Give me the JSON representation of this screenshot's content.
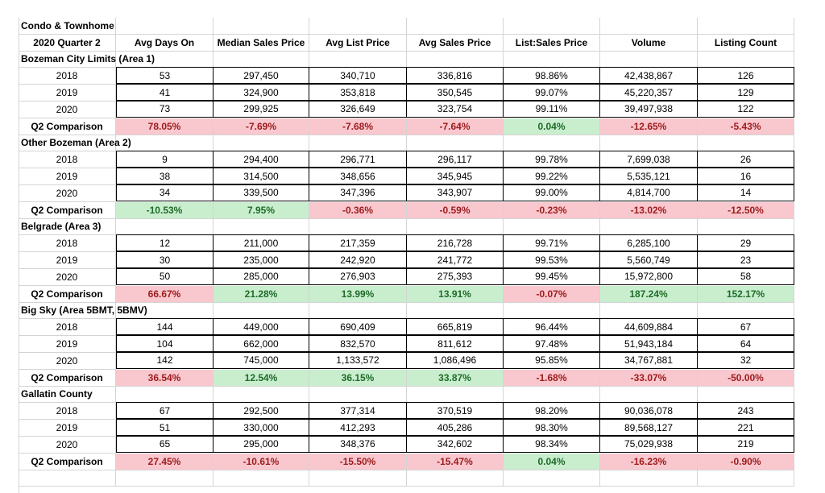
{
  "title_line1": "Condo & Townhome",
  "title_line2": "2020 Quarter 2",
  "columns": [
    "Avg Days On",
    "Median Sales Price",
    "Avg List Price",
    "Avg Sales Price",
    "List:Sales Price",
    "Volume",
    "Listing Count"
  ],
  "colors": {
    "pink_bg": "#f9c7ce",
    "pink_text": "#9c1c1c",
    "green_bg": "#c9eece",
    "green_text": "#1e6b28"
  },
  "sections": [
    {
      "name": "Bozeman City Limits (Area 1)",
      "rows": [
        {
          "year": "2018",
          "values": [
            "53",
            "297,450",
            "340,710",
            "336,816",
            "98.86%",
            "42,438,867",
            "126"
          ]
        },
        {
          "year": "2019",
          "values": [
            "41",
            "324,900",
            "353,818",
            "350,545",
            "99.07%",
            "45,220,357",
            "129"
          ]
        },
        {
          "year": "2020",
          "values": [
            "73",
            "299,925",
            "326,649",
            "323,754",
            "99.11%",
            "39,497,938",
            "122"
          ]
        }
      ],
      "comparison_label": "Q2 Comparison",
      "comparison": [
        {
          "value": "78.05%",
          "tone": "pos"
        },
        {
          "value": "-7.69%",
          "tone": "pos"
        },
        {
          "value": "-7.68%",
          "tone": "pos"
        },
        {
          "value": "-7.64%",
          "tone": "pos"
        },
        {
          "value": "0.04%",
          "tone": "neg"
        },
        {
          "value": "-12.65%",
          "tone": "pos"
        },
        {
          "value": "-5.43%",
          "tone": "pos"
        }
      ]
    },
    {
      "name": "Other Bozeman (Area 2)",
      "rows": [
        {
          "year": "2018",
          "values": [
            "9",
            "294,400",
            "296,771",
            "296,117",
            "99.78%",
            "7,699,038",
            "26"
          ]
        },
        {
          "year": "2019",
          "values": [
            "38",
            "314,500",
            "348,656",
            "345,945",
            "99.22%",
            "5,535,121",
            "16"
          ]
        },
        {
          "year": "2020",
          "values": [
            "34",
            "339,500",
            "347,396",
            "343,907",
            "99.00%",
            "4,814,700",
            "14"
          ]
        }
      ],
      "comparison_label": "Q2 Comparison",
      "comparison": [
        {
          "value": "-10.53%",
          "tone": "neg"
        },
        {
          "value": "7.95%",
          "tone": "neg"
        },
        {
          "value": "-0.36%",
          "tone": "pos"
        },
        {
          "value": "-0.59%",
          "tone": "pos"
        },
        {
          "value": "-0.23%",
          "tone": "pos"
        },
        {
          "value": "-13.02%",
          "tone": "pos"
        },
        {
          "value": "-12.50%",
          "tone": "pos"
        }
      ]
    },
    {
      "name": "Belgrade (Area 3)",
      "rows": [
        {
          "year": "2018",
          "values": [
            "12",
            "211,000",
            "217,359",
            "216,728",
            "99.71%",
            "6,285,100",
            "29"
          ]
        },
        {
          "year": "2019",
          "values": [
            "30",
            "235,000",
            "242,920",
            "241,772",
            "99.53%",
            "5,560,749",
            "23"
          ]
        },
        {
          "year": "2020",
          "values": [
            "50",
            "285,000",
            "276,903",
            "275,393",
            "99.45%",
            "15,972,800",
            "58"
          ]
        }
      ],
      "comparison_label": "Q2 Comparison",
      "comparison": [
        {
          "value": "66.67%",
          "tone": "pos"
        },
        {
          "value": "21.28%",
          "tone": "neg"
        },
        {
          "value": "13.99%",
          "tone": "neg"
        },
        {
          "value": "13.91%",
          "tone": "neg"
        },
        {
          "value": "-0.07%",
          "tone": "pos"
        },
        {
          "value": "187.24%",
          "tone": "neg"
        },
        {
          "value": "152.17%",
          "tone": "neg"
        }
      ]
    },
    {
      "name": "Big Sky (Area 5BMT, 5BMV)",
      "rows": [
        {
          "year": "2018",
          "values": [
            "144",
            "449,000",
            "690,409",
            "665,819",
            "96.44%",
            "44,609,884",
            "67"
          ]
        },
        {
          "year": "2019",
          "values": [
            "104",
            "662,000",
            "832,570",
            "811,612",
            "97.48%",
            "51,943,184",
            "64"
          ]
        },
        {
          "year": "2020",
          "values": [
            "142",
            "745,000",
            "1,133,572",
            "1,086,496",
            "95.85%",
            "34,767,881",
            "32"
          ]
        }
      ],
      "comparison_label": "Q2 Comparison",
      "comparison": [
        {
          "value": "36.54%",
          "tone": "pos"
        },
        {
          "value": "12.54%",
          "tone": "neg"
        },
        {
          "value": "36.15%",
          "tone": "neg"
        },
        {
          "value": "33.87%",
          "tone": "neg"
        },
        {
          "value": "-1.68%",
          "tone": "pos"
        },
        {
          "value": "-33.07%",
          "tone": "pos"
        },
        {
          "value": "-50.00%",
          "tone": "pos"
        }
      ]
    },
    {
      "name": "Gallatin County",
      "rows": [
        {
          "year": "2018",
          "values": [
            "67",
            "292,500",
            "377,314",
            "370,519",
            "98.20%",
            "90,036,078",
            "243"
          ]
        },
        {
          "year": "2019",
          "values": [
            "51",
            "330,000",
            "412,293",
            "405,286",
            "98.30%",
            "89,568,127",
            "221"
          ]
        },
        {
          "year": "2020",
          "values": [
            "65",
            "295,000",
            "348,376",
            "342,602",
            "98.34%",
            "75,029,938",
            "219"
          ]
        }
      ],
      "comparison_label": "Q2 Comparison",
      "comparison": [
        {
          "value": "27.45%",
          "tone": "pos"
        },
        {
          "value": "-10.61%",
          "tone": "pos"
        },
        {
          "value": "-15.50%",
          "tone": "pos"
        },
        {
          "value": "-15.47%",
          "tone": "pos"
        },
        {
          "value": "0.04%",
          "tone": "neg"
        },
        {
          "value": "-16.23%",
          "tone": "pos"
        },
        {
          "value": "-0.90%",
          "tone": "pos"
        }
      ]
    }
  ]
}
